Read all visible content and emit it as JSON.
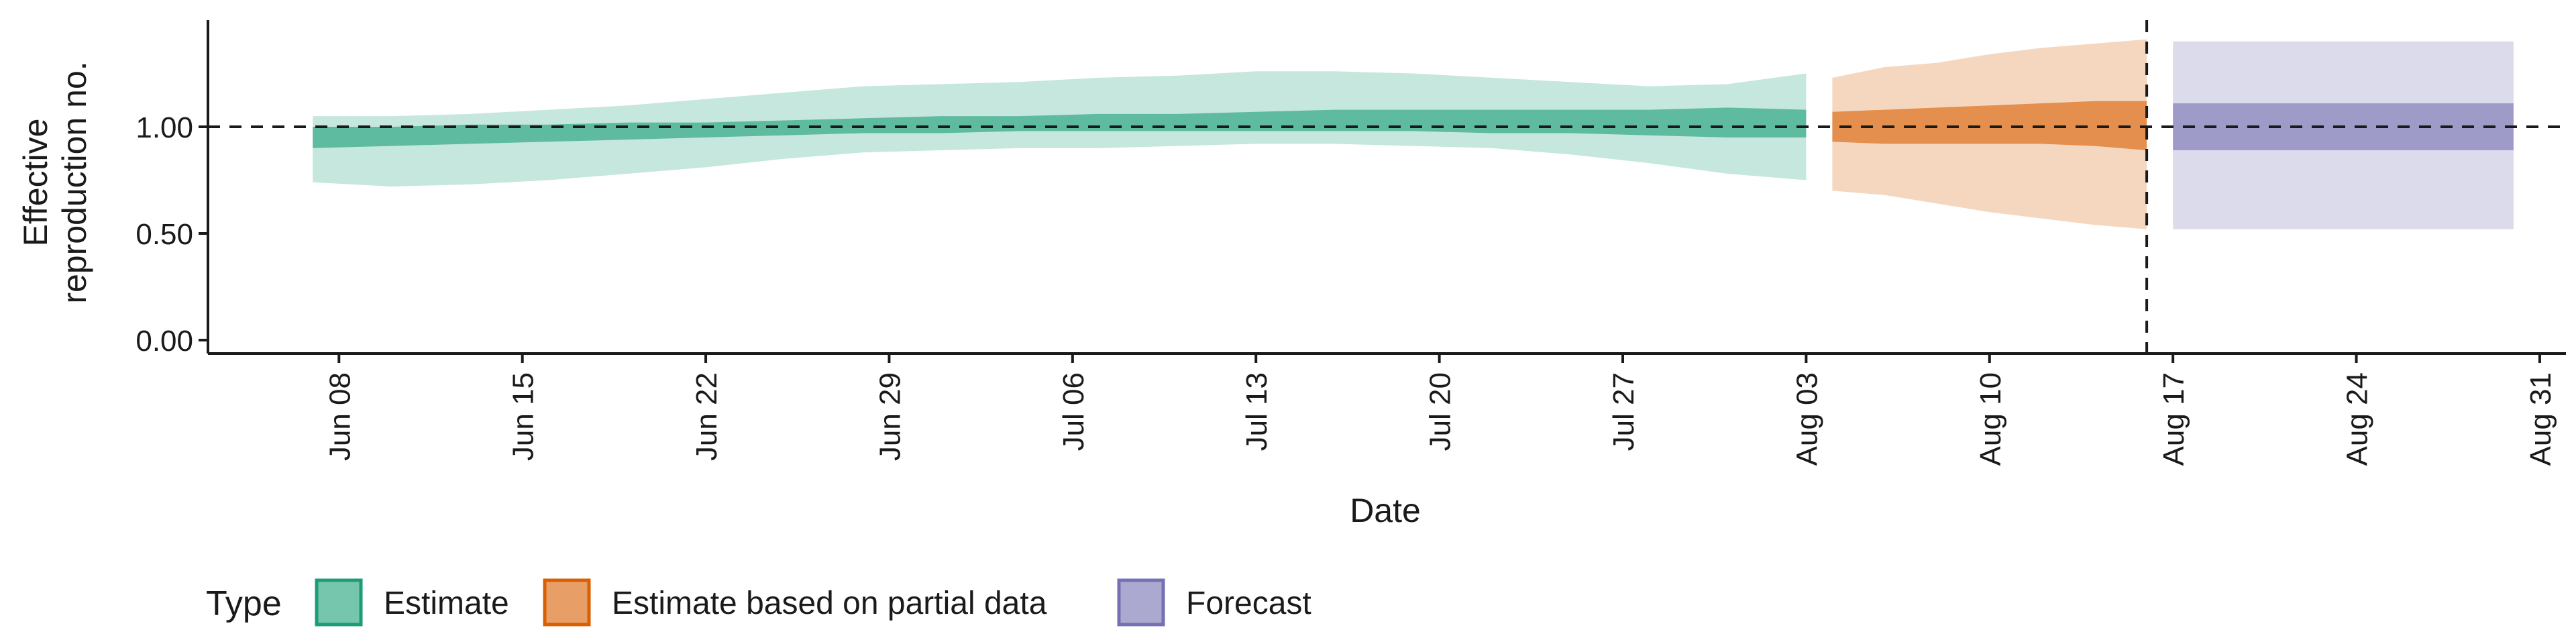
{
  "chart_data": {
    "type": "area",
    "title": "",
    "xlabel": "Date",
    "ylabel_lines": [
      "Effective",
      "reproduction no."
    ],
    "x_range": [
      "2020-06-03",
      "2020-09-01"
    ],
    "ylim": [
      0,
      1.5
    ],
    "y_ticks": [
      0,
      0.5,
      1.0
    ],
    "y_tick_labels": [
      "0.00",
      "0.50",
      "1.00"
    ],
    "x_ticks": [
      "2020-06-08",
      "2020-06-15",
      "2020-06-22",
      "2020-06-29",
      "2020-07-06",
      "2020-07-13",
      "2020-07-20",
      "2020-07-27",
      "2020-08-03",
      "2020-08-10",
      "2020-08-17",
      "2020-08-24",
      "2020-08-31"
    ],
    "x_tick_labels": [
      "Jun 08",
      "Jun 15",
      "Jun 22",
      "Jun 29",
      "Jul 06",
      "Jul 13",
      "Jul 20",
      "Jul 27",
      "Aug 03",
      "Aug 10",
      "Aug 17",
      "Aug 24",
      "Aug 31"
    ],
    "reference_hline": 1.0,
    "reference_vline": "2020-08-16",
    "grid": false,
    "legend": {
      "title": "Type",
      "position": "bottom-left",
      "items": [
        "Estimate",
        "Estimate based on partial data",
        "Forecast"
      ]
    },
    "series": [
      {
        "name": "Estimate",
        "fill": "#1b9e77",
        "x": [
          "2020-06-07",
          "2020-06-10",
          "2020-06-13",
          "2020-06-16",
          "2020-06-19",
          "2020-06-22",
          "2020-06-25",
          "2020-06-28",
          "2020-07-01",
          "2020-07-04",
          "2020-07-07",
          "2020-07-10",
          "2020-07-13",
          "2020-07-16",
          "2020-07-19",
          "2020-07-22",
          "2020-07-25",
          "2020-07-28",
          "2020-07-31",
          "2020-08-03"
        ],
        "outer_lower": [
          0.74,
          0.72,
          0.73,
          0.75,
          0.78,
          0.81,
          0.85,
          0.88,
          0.89,
          0.9,
          0.9,
          0.91,
          0.92,
          0.92,
          0.91,
          0.9,
          0.87,
          0.83,
          0.78,
          0.75
        ],
        "outer_upper": [
          1.05,
          1.05,
          1.06,
          1.08,
          1.1,
          1.13,
          1.16,
          1.19,
          1.2,
          1.21,
          1.23,
          1.24,
          1.26,
          1.26,
          1.25,
          1.23,
          1.21,
          1.19,
          1.2,
          1.25
        ],
        "inner_lower": [
          0.9,
          0.91,
          0.92,
          0.93,
          0.94,
          0.95,
          0.96,
          0.97,
          0.97,
          0.98,
          0.98,
          0.98,
          0.98,
          0.98,
          0.98,
          0.97,
          0.97,
          0.96,
          0.95,
          0.95
        ],
        "inner_upper": [
          1.0,
          1.0,
          1.01,
          1.01,
          1.02,
          1.02,
          1.03,
          1.04,
          1.05,
          1.05,
          1.06,
          1.06,
          1.07,
          1.08,
          1.08,
          1.08,
          1.08,
          1.08,
          1.09,
          1.08
        ]
      },
      {
        "name": "Estimate based on partial data",
        "fill": "#d95f02",
        "x": [
          "2020-08-04",
          "2020-08-06",
          "2020-08-08",
          "2020-08-10",
          "2020-08-12",
          "2020-08-14",
          "2020-08-16"
        ],
        "outer_lower": [
          0.7,
          0.68,
          0.64,
          0.6,
          0.57,
          0.54,
          0.52
        ],
        "outer_upper": [
          1.23,
          1.28,
          1.3,
          1.34,
          1.37,
          1.39,
          1.41
        ],
        "inner_lower": [
          0.93,
          0.92,
          0.92,
          0.92,
          0.92,
          0.91,
          0.89
        ],
        "inner_upper": [
          1.07,
          1.08,
          1.09,
          1.1,
          1.11,
          1.12,
          1.12
        ]
      },
      {
        "name": "Forecast",
        "fill": "#7570b3",
        "x": [
          "2020-08-17",
          "2020-08-30"
        ],
        "outer_lower": [
          0.52,
          0.52
        ],
        "outer_upper": [
          1.4,
          1.4
        ],
        "inner_lower": [
          0.89,
          0.89
        ],
        "inner_upper": [
          1.11,
          1.11
        ]
      }
    ]
  }
}
